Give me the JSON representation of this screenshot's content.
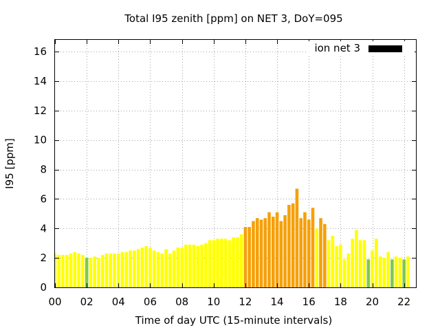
{
  "chart_data": {
    "type": "bar",
    "title": "Total I95 zenith [ppm] on NET 3, DoY=095",
    "xlabel": "Time of day UTC (15-minute intervals)",
    "ylabel": "I95 [ppm]",
    "xlim": [
      0,
      22.75
    ],
    "ylim": [
      0,
      16.8
    ],
    "x_ticks": [
      "00",
      "02",
      "04",
      "06",
      "08",
      "10",
      "12",
      "14",
      "16",
      "18",
      "20",
      "22"
    ],
    "y_ticks": [
      0,
      2,
      4,
      6,
      8,
      10,
      12,
      14,
      16
    ],
    "grid": true,
    "bar_interval_hours": 0.25,
    "legend": {
      "position": "top-right",
      "entries": [
        {
          "label": "ion net 3",
          "color": "#000000"
        }
      ]
    },
    "colors": {
      "low": "#ffff00",
      "medium": "#f5a00a",
      "insufficient": "#7ec850",
      "legend_swatch": "#000000"
    },
    "values": [
      2.3,
      2.2,
      2.2,
      2.2,
      2.3,
      2.4,
      2.3,
      2.2,
      2.0,
      2.0,
      2.1,
      2.0,
      2.2,
      2.3,
      2.3,
      2.3,
      2.3,
      2.4,
      2.4,
      2.5,
      2.5,
      2.6,
      2.7,
      2.8,
      2.7,
      2.5,
      2.4,
      2.3,
      2.6,
      2.3,
      2.5,
      2.7,
      2.7,
      2.9,
      2.9,
      2.9,
      2.8,
      2.9,
      3.0,
      3.2,
      3.2,
      3.3,
      3.3,
      3.3,
      3.2,
      3.4,
      3.4,
      3.6,
      4.1,
      4.1,
      4.5,
      4.7,
      4.6,
      4.7,
      5.1,
      4.8,
      5.1,
      4.5,
      4.9,
      5.6,
      5.7,
      6.7,
      4.7,
      5.1,
      4.6,
      5.4,
      4.0,
      4.7,
      4.3,
      3.2,
      3.5,
      2.8,
      2.9,
      1.9,
      2.3,
      3.3,
      3.9,
      3.2,
      3.2,
      1.9,
      2.5,
      3.3,
      2.1,
      2.0,
      2.4,
      1.9,
      2.1,
      2.0,
      1.9,
      2.1
    ],
    "levels": [
      "L",
      "L",
      "L",
      "L",
      "L",
      "L",
      "L",
      "L",
      "G",
      "L",
      "L",
      "L",
      "L",
      "L",
      "L",
      "L",
      "L",
      "L",
      "L",
      "L",
      "L",
      "L",
      "L",
      "L",
      "L",
      "L",
      "L",
      "L",
      "L",
      "L",
      "L",
      "L",
      "L",
      "L",
      "L",
      "L",
      "L",
      "L",
      "L",
      "L",
      "L",
      "L",
      "L",
      "L",
      "L",
      "L",
      "L",
      "L",
      "M",
      "M",
      "M",
      "M",
      "M",
      "M",
      "M",
      "M",
      "M",
      "M",
      "M",
      "M",
      "M",
      "M",
      "M",
      "M",
      "M",
      "M",
      "L",
      "M",
      "M",
      "L",
      "L",
      "L",
      "L",
      "L",
      "L",
      "L",
      "L",
      "L",
      "L",
      "G",
      "L",
      "L",
      "L",
      "L",
      "L",
      "G",
      "L",
      "L",
      "G",
      "L"
    ]
  }
}
